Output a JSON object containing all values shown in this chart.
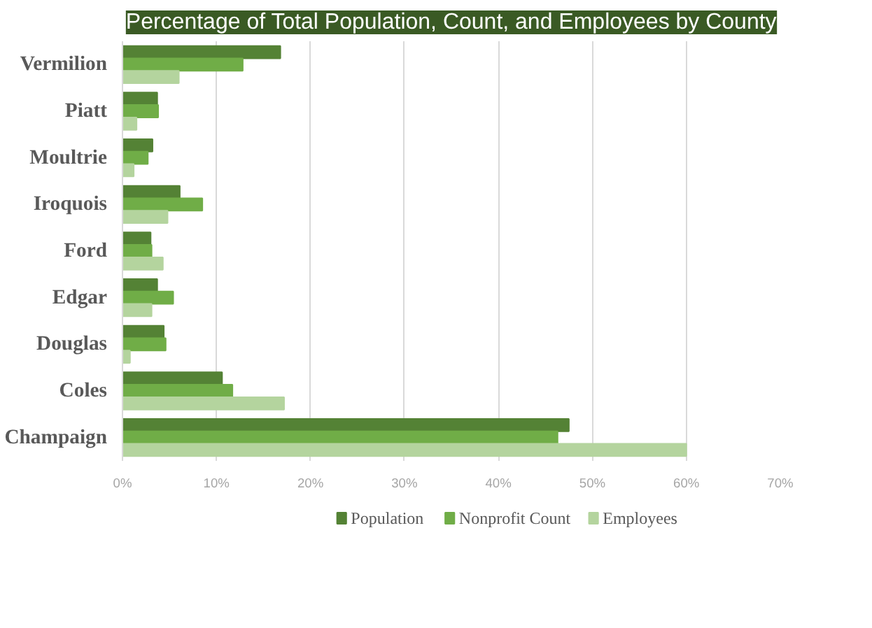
{
  "chart_data": {
    "type": "bar",
    "orientation": "horizontal",
    "title": "Percentage of Total Population, Count, and Employees by County",
    "categories": [
      "Vermilion",
      "Piatt",
      "Moultrie",
      "Iroquois",
      "Ford",
      "Edgar",
      "Douglas",
      "Coles",
      "Champaign"
    ],
    "series": [
      {
        "name": "Population",
        "color": "#548235",
        "values": [
          16.8,
          3.7,
          3.2,
          6.1,
          3.0,
          3.7,
          4.4,
          10.6,
          47.5
        ]
      },
      {
        "name": "Nonprofit Count",
        "color": "#70ad47",
        "values": [
          12.8,
          3.8,
          2.7,
          8.5,
          3.1,
          5.4,
          4.6,
          11.7,
          46.3
        ]
      },
      {
        "name": "Employees",
        "color": "#b4d49e",
        "values": [
          6.0,
          1.5,
          1.2,
          4.8,
          4.3,
          3.1,
          0.8,
          17.2,
          60.0
        ]
      }
    ],
    "xlim": [
      0,
      70
    ],
    "xticks": [
      {
        "value": 0,
        "label": "0%"
      },
      {
        "value": 10,
        "label": "10%"
      },
      {
        "value": 20,
        "label": "20%"
      },
      {
        "value": 30,
        "label": "30%"
      },
      {
        "value": 40,
        "label": "40%"
      },
      {
        "value": 50,
        "label": "50%"
      },
      {
        "value": 60,
        "label": "60%"
      },
      {
        "value": 70,
        "label": "70%"
      }
    ],
    "grid": "x",
    "legend": "bottom"
  }
}
